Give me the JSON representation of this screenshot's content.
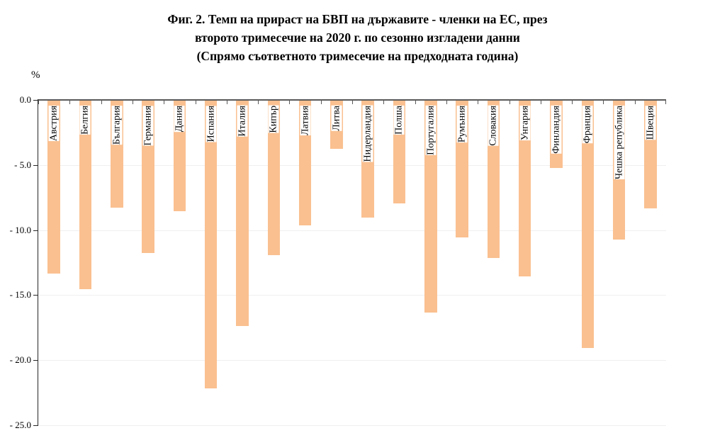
{
  "chart_data": {
    "type": "bar",
    "title_lines": [
      "Фиг. 2. Темп на прираст на БВП на държавите - членки на ЕС, през",
      "второто тримесечие на 2020 г. по сезонно изгладени данни",
      "(Спрямо съответното тримесечие на предходната година)"
    ],
    "ylabel": "%",
    "categories": [
      "Австрия",
      "Белгия",
      "България",
      "Германия",
      "Дания",
      "Испания",
      "Италия",
      "Кипър",
      "Латвия",
      "Литва",
      "Нидерландия",
      "Полша",
      "Португалия",
      "Румъния",
      "Словакия",
      "Унгария",
      "Финландия",
      "Франция",
      "Чешка република",
      "Швеция"
    ],
    "values": [
      -13.3,
      -14.5,
      -8.2,
      -11.7,
      -8.5,
      -22.1,
      -17.3,
      -11.9,
      -9.6,
      -3.7,
      -9.0,
      -7.9,
      -16.3,
      -10.5,
      -12.1,
      -13.5,
      -5.2,
      -19.0,
      -10.7,
      -8.3
    ],
    "ylim": [
      -25,
      0
    ],
    "ytick_interval": 5,
    "ytick_labels": [
      "0.0",
      "- 5.0",
      "- 10.0",
      "- 15.0",
      "- 20.0",
      "- 25.0"
    ],
    "grid": "horizontal",
    "legend": "none",
    "bar_color": "#FAC090",
    "axis_line_color": "#595959",
    "gridline_color": "#EFEFEF",
    "label_style": "rotated-90-inside-bar-top"
  }
}
